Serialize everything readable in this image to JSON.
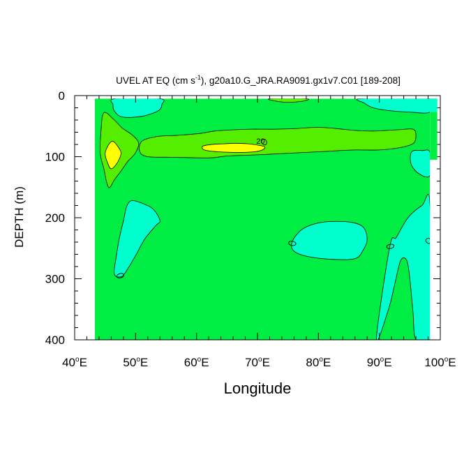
{
  "chart_data": {
    "type": "contour",
    "title": "UVEL AT EQ (cm s",
    "title_exponent": "-1",
    "title_suffix": "), g20a10.G_JRA.RA9091.gx1v7.C01 [189-208]",
    "xlabel": "Longitude",
    "ylabel": "DEPTH (m)",
    "xlim": [
      40,
      100
    ],
    "ylim": [
      400,
      0
    ],
    "x_ticks": [
      {
        "value": 40,
        "label": "40",
        "unit": "o",
        "suffix": "E"
      },
      {
        "value": 50,
        "label": "50",
        "unit": "o",
        "suffix": "E"
      },
      {
        "value": 60,
        "label": "60",
        "unit": "o",
        "suffix": "E"
      },
      {
        "value": 70,
        "label": "70",
        "unit": "o",
        "suffix": "E"
      },
      {
        "value": 80,
        "label": "80",
        "unit": "o",
        "suffix": "E"
      },
      {
        "value": 90,
        "label": "90",
        "unit": "o",
        "suffix": "E"
      },
      {
        "value": 100,
        "label": "100",
        "unit": "o",
        "suffix": "E"
      }
    ],
    "y_ticks": [
      {
        "value": 0,
        "label": "0"
      },
      {
        "value": 100,
        "label": "100"
      },
      {
        "value": 200,
        "label": "200"
      },
      {
        "value": 300,
        "label": "300"
      },
      {
        "value": 400,
        "label": "400"
      }
    ],
    "data_domain": {
      "lon": [
        43.3,
        98.3
      ],
      "depth": [
        5,
        400
      ]
    },
    "background_fill": "#00ee44",
    "regions": [
      {
        "name": "cyan-top-left",
        "color": "#00ffcc",
        "points": [
          [
            46.6,
            5
          ],
          [
            54,
            5
          ],
          [
            54.3,
            15
          ],
          [
            53.7,
            25
          ],
          [
            51,
            34
          ],
          [
            47.8,
            35
          ],
          [
            46.5,
            25
          ],
          [
            46.3,
            15
          ]
        ]
      },
      {
        "name": "green-top-mid",
        "color": "#55ee00",
        "points": [
          [
            72,
            5
          ],
          [
            78,
            5
          ],
          [
            77.5,
            9
          ],
          [
            75,
            11
          ],
          [
            73,
            9
          ]
        ]
      },
      {
        "name": "cyan-top-right",
        "color": "#00ffcc",
        "points": [
          [
            87,
            5
          ],
          [
            98.3,
            5
          ],
          [
            98.3,
            27
          ],
          [
            95,
            27
          ],
          [
            92,
            25
          ],
          [
            89,
            20
          ],
          [
            87.5,
            12
          ]
        ]
      },
      {
        "name": "cyan-right-mid",
        "color": "#00ffcc",
        "points": [
          [
            95.3,
            92
          ],
          [
            97,
            90
          ],
          [
            98.3,
            93
          ],
          [
            98.3,
            131
          ],
          [
            96.5,
            128
          ],
          [
            95.2,
            112
          ]
        ]
      },
      {
        "name": "green-left-blob",
        "color": "#55ee00",
        "points": [
          [
            44.8,
            28
          ],
          [
            46.5,
            40
          ],
          [
            47.8,
            53
          ],
          [
            49.5,
            65
          ],
          [
            50.5,
            78
          ],
          [
            49.9,
            95
          ],
          [
            48.7,
            108
          ],
          [
            47.5,
            125
          ],
          [
            46.5,
            138
          ],
          [
            45.7,
            151
          ],
          [
            45.2,
            140
          ],
          [
            44.8,
            120
          ],
          [
            44.2,
            95
          ],
          [
            44.3,
            60
          ]
        ]
      },
      {
        "name": "green-upper-band",
        "color": "#55ee00",
        "points": [
          [
            51,
            75
          ],
          [
            53.5,
            67
          ],
          [
            57,
            65
          ],
          [
            60.5,
            62
          ],
          [
            63,
            58
          ],
          [
            66,
            56
          ],
          [
            69,
            55
          ],
          [
            73,
            55
          ],
          [
            76,
            54
          ],
          [
            80,
            52
          ],
          [
            83,
            54
          ],
          [
            86,
            57
          ],
          [
            89,
            58
          ],
          [
            93,
            56
          ],
          [
            95.5,
            55
          ],
          [
            96,
            65
          ],
          [
            95.6,
            78
          ],
          [
            93.5,
            85
          ],
          [
            90,
            89
          ],
          [
            86,
            89
          ],
          [
            82,
            91
          ],
          [
            78,
            93
          ],
          [
            74,
            95
          ],
          [
            70,
            97
          ],
          [
            65,
            99
          ],
          [
            62,
            102
          ],
          [
            56,
            101
          ],
          [
            52,
            100
          ],
          [
            50.7,
            92
          ]
        ]
      },
      {
        "name": "yellow-left",
        "color": "#ffff00",
        "points": [
          [
            46.3,
            75
          ],
          [
            47.2,
            85
          ],
          [
            47.6,
            95
          ],
          [
            47,
            110
          ],
          [
            46,
            120
          ],
          [
            45.4,
            110
          ],
          [
            45,
            95
          ],
          [
            45.6,
            80
          ]
        ]
      },
      {
        "name": "yellow-center",
        "color": "#ffff00",
        "points": [
          [
            61,
            83
          ],
          [
            62.5,
            80
          ],
          [
            64.5,
            79
          ],
          [
            66.5,
            78
          ],
          [
            68.5,
            79
          ],
          [
            70,
            81
          ],
          [
            71.2,
            84
          ],
          [
            70.8,
            89
          ],
          [
            69.5,
            92
          ],
          [
            67,
            93
          ],
          [
            63.5,
            92
          ],
          [
            61.3,
            89
          ]
        ]
      },
      {
        "name": "cyan-left-lower",
        "color": "#00ffcc",
        "points": [
          [
            49.5,
            172
          ],
          [
            51.5,
            178
          ],
          [
            53,
            187
          ],
          [
            54,
            205
          ],
          [
            53.3,
            213
          ],
          [
            51.5,
            235
          ],
          [
            50,
            262
          ],
          [
            48.3,
            290
          ],
          [
            47.5,
            297
          ],
          [
            46.5,
            292
          ],
          [
            46.8,
            265
          ],
          [
            47.3,
            235
          ],
          [
            48,
            205
          ],
          [
            48.6,
            180
          ]
        ]
      },
      {
        "name": "cyan-mid-lower",
        "color": "#00ffcc",
        "points": [
          [
            75.6,
            243
          ],
          [
            76.4,
            228
          ],
          [
            78,
            215
          ],
          [
            81,
            207
          ],
          [
            85,
            207
          ],
          [
            87.3,
            215
          ],
          [
            88,
            235
          ],
          [
            87.4,
            252
          ],
          [
            86,
            267
          ],
          [
            82,
            268
          ],
          [
            78,
            263
          ],
          [
            76,
            255
          ]
        ]
      },
      {
        "name": "cyan-right-lower",
        "color": "#00ffcc",
        "points": [
          [
            91.7,
            248
          ],
          [
            92.8,
            232
          ],
          [
            94.7,
            200
          ],
          [
            97,
            180
          ],
          [
            98.3,
            178
          ],
          [
            98.3,
            400
          ],
          [
            96,
            400
          ],
          [
            95.5,
            352
          ],
          [
            95,
            300
          ],
          [
            94.5,
            270
          ],
          [
            93.5,
            270
          ],
          [
            92.5,
            310
          ],
          [
            91.5,
            350
          ],
          [
            89.5,
            400
          ]
        ]
      }
    ],
    "small_contour_ellipses": [
      {
        "name": "ellipse-71-76",
        "center": [
          71.1,
          76
        ],
        "radius_lon": 0.4,
        "radius_depth": 5,
        "rotate_deg": -30
      },
      {
        "name": "ellipse-75-242",
        "center": [
          75.7,
          242
        ],
        "radius_lon": 0.6,
        "radius_depth": 3.5,
        "rotate_deg": 10
      },
      {
        "name": "ellipse-47-295",
        "center": [
          47.5,
          295
        ],
        "radius_lon": 0.6,
        "radius_depth": 3.5,
        "rotate_deg": -15
      },
      {
        "name": "ellipse-92-247",
        "center": [
          91.8,
          247
        ],
        "radius_lon": 0.6,
        "radius_depth": 3.5,
        "rotate_deg": -10
      },
      {
        "name": "ellipse-98-238",
        "center": [
          98.1,
          238
        ],
        "radius_lon": 0.5,
        "radius_depth": 4,
        "rotate_deg": 30
      }
    ],
    "contour_labels": [
      {
        "text": "20",
        "lon": 70.5,
        "depth": 74
      }
    ]
  }
}
